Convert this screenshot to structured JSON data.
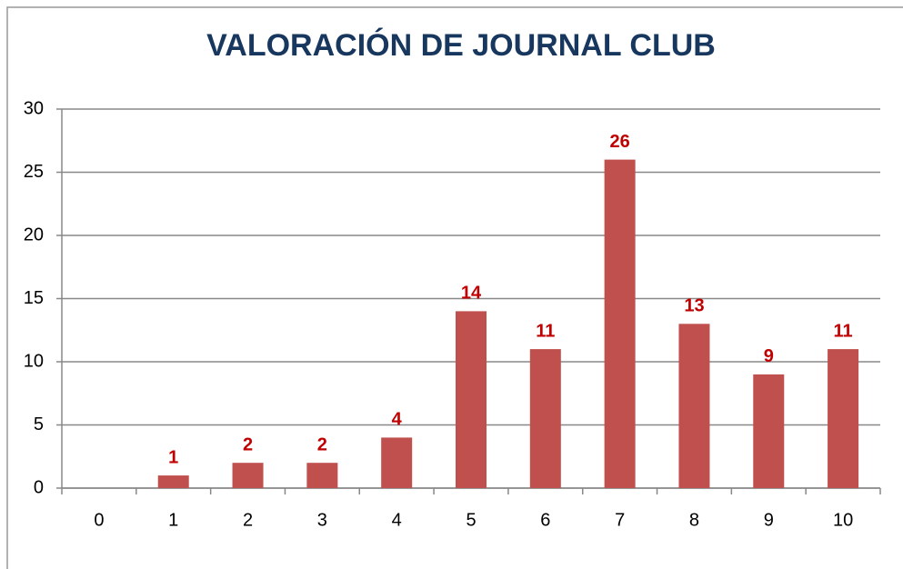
{
  "chart_data": {
    "type": "bar",
    "title": "VALORACIÓN DE JOURNAL CLUB",
    "categories": [
      "0",
      "1",
      "2",
      "3",
      "4",
      "5",
      "6",
      "7",
      "8",
      "9",
      "10"
    ],
    "values": [
      0,
      1,
      2,
      2,
      4,
      14,
      11,
      26,
      13,
      9,
      11
    ],
    "color": "#c0504d",
    "label_color": "#c00000",
    "ylim": [
      0,
      30
    ],
    "yticks": [
      0,
      5,
      10,
      15,
      20,
      25,
      30
    ],
    "grid": true
  }
}
